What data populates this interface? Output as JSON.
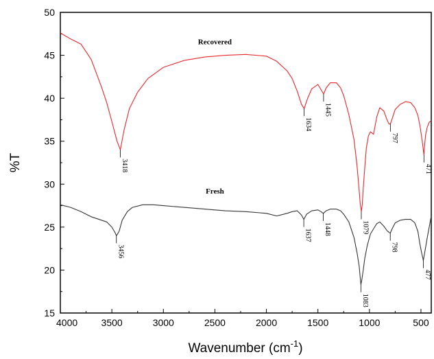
{
  "chart_data": {
    "type": "line",
    "title": "",
    "xlabel": "Wavenumber (cm",
    "xlabel_sup": "-1",
    "xlabel_end": ")",
    "ylabel": "%T",
    "xlim": [
      4000,
      400
    ],
    "ylim": [
      15,
      50
    ],
    "x_ticks": [
      4000,
      3500,
      3000,
      2500,
      2000,
      1500,
      1000,
      500
    ],
    "y_ticks": [
      15,
      20,
      25,
      30,
      35,
      40,
      45,
      50
    ],
    "x_tick_labels": [
      "4000",
      "3500",
      "3000",
      "2500",
      "2000",
      "1500",
      "1000",
      "500"
    ],
    "y_tick_labels": [
      "15",
      "20",
      "25",
      "30",
      "35",
      "40",
      "45",
      "50"
    ],
    "grid": false,
    "legend": "none",
    "series": [
      {
        "name": "Recovered",
        "color": "#e8262a",
        "label_at": [
          2500,
          46.3
        ],
        "x": [
          4000,
          3900,
          3800,
          3700,
          3600,
          3550,
          3500,
          3450,
          3418,
          3380,
          3330,
          3250,
          3150,
          3000,
          2800,
          2600,
          2400,
          2200,
          2000,
          1900,
          1800,
          1750,
          1700,
          1660,
          1634,
          1600,
          1560,
          1500,
          1470,
          1445,
          1420,
          1380,
          1320,
          1280,
          1250,
          1200,
          1150,
          1120,
          1100,
          1090,
          1079,
          1070,
          1060,
          1045,
          1030,
          1010,
          990,
          960,
          930,
          900,
          860,
          830,
          810,
          797,
          780,
          750,
          700,
          650,
          600,
          560,
          530,
          510,
          490,
          480,
          471,
          465,
          455,
          440,
          420,
          400
        ],
        "y": [
          47.6,
          46.9,
          46.3,
          44.5,
          41.3,
          39.5,
          37.3,
          35.0,
          34.0,
          36.4,
          38.8,
          40.7,
          42.3,
          43.6,
          44.4,
          44.8,
          45.0,
          45.1,
          44.9,
          44.3,
          43.2,
          42.3,
          40.8,
          39.3,
          38.8,
          40.0,
          41.1,
          41.6,
          41.0,
          40.5,
          41.2,
          41.8,
          41.8,
          41.2,
          40.3,
          38.1,
          35.2,
          32.1,
          29.3,
          27.8,
          26.8,
          27.6,
          29.5,
          32.0,
          34.2,
          35.6,
          36.1,
          35.8,
          37.8,
          38.9,
          38.5,
          37.5,
          37.0,
          37.0,
          37.6,
          38.7,
          39.3,
          39.6,
          39.5,
          38.9,
          38.0,
          36.8,
          35.2,
          34.3,
          33.4,
          34.4,
          35.7,
          36.6,
          37.2,
          37.4
        ]
      },
      {
        "name": "Fresh",
        "color": "#333333",
        "label_at": [
          2500,
          28.9
        ],
        "x": [
          4000,
          3900,
          3800,
          3700,
          3600,
          3550,
          3500,
          3470,
          3456,
          3430,
          3400,
          3350,
          3300,
          3200,
          3100,
          3000,
          2800,
          2600,
          2400,
          2200,
          2000,
          1900,
          1800,
          1750,
          1700,
          1660,
          1637,
          1610,
          1560,
          1500,
          1470,
          1448,
          1420,
          1380,
          1320,
          1280,
          1250,
          1200,
          1150,
          1120,
          1100,
          1090,
          1083,
          1075,
          1060,
          1045,
          1020,
          990,
          960,
          930,
          900,
          860,
          830,
          810,
          798,
          780,
          750,
          700,
          650,
          600,
          560,
          530,
          510,
          490,
          480,
          477,
          470,
          455,
          440,
          420,
          400
        ],
        "y": [
          27.6,
          27.3,
          26.8,
          26.2,
          25.8,
          25.6,
          25.0,
          24.4,
          24.0,
          24.5,
          25.8,
          26.8,
          27.3,
          27.6,
          27.6,
          27.5,
          27.3,
          27.1,
          26.9,
          26.8,
          26.6,
          26.3,
          26.6,
          26.8,
          26.9,
          26.4,
          25.9,
          26.5,
          26.9,
          27.0,
          26.8,
          26.6,
          26.9,
          27.1,
          27.1,
          26.9,
          26.5,
          25.6,
          23.8,
          22.0,
          20.5,
          19.2,
          18.3,
          18.8,
          20.0,
          21.4,
          22.9,
          24.2,
          24.8,
          25.4,
          25.6,
          25.1,
          24.6,
          24.4,
          24.3,
          24.8,
          25.5,
          25.8,
          25.9,
          25.9,
          25.5,
          24.5,
          23.0,
          21.8,
          21.3,
          21.1,
          21.6,
          22.6,
          23.7,
          25.0,
          26.3
        ]
      }
    ],
    "annotations": [
      {
        "series": "Recovered",
        "text": "3418",
        "x": 3418,
        "y": 34.0
      },
      {
        "series": "Recovered",
        "text": "1634",
        "x": 1634,
        "y": 38.8
      },
      {
        "series": "Recovered",
        "text": "1445",
        "x": 1445,
        "y": 40.5
      },
      {
        "series": "Recovered",
        "text": "1079",
        "x": 1079,
        "y": 26.8
      },
      {
        "series": "Recovered",
        "text": "797",
        "x": 797,
        "y": 37.0
      },
      {
        "series": "Recovered",
        "text": "471",
        "x": 471,
        "y": 33.4
      },
      {
        "series": "Fresh",
        "text": "3456",
        "x": 3456,
        "y": 24.0
      },
      {
        "series": "Fresh",
        "text": "1637",
        "x": 1637,
        "y": 25.9
      },
      {
        "series": "Fresh",
        "text": "1448",
        "x": 1448,
        "y": 26.6
      },
      {
        "series": "Fresh",
        "text": "1083",
        "x": 1083,
        "y": 18.3
      },
      {
        "series": "Fresh",
        "text": "798",
        "x": 798,
        "y": 24.3
      },
      {
        "series": "Fresh",
        "text": "477",
        "x": 477,
        "y": 21.1
      }
    ]
  }
}
